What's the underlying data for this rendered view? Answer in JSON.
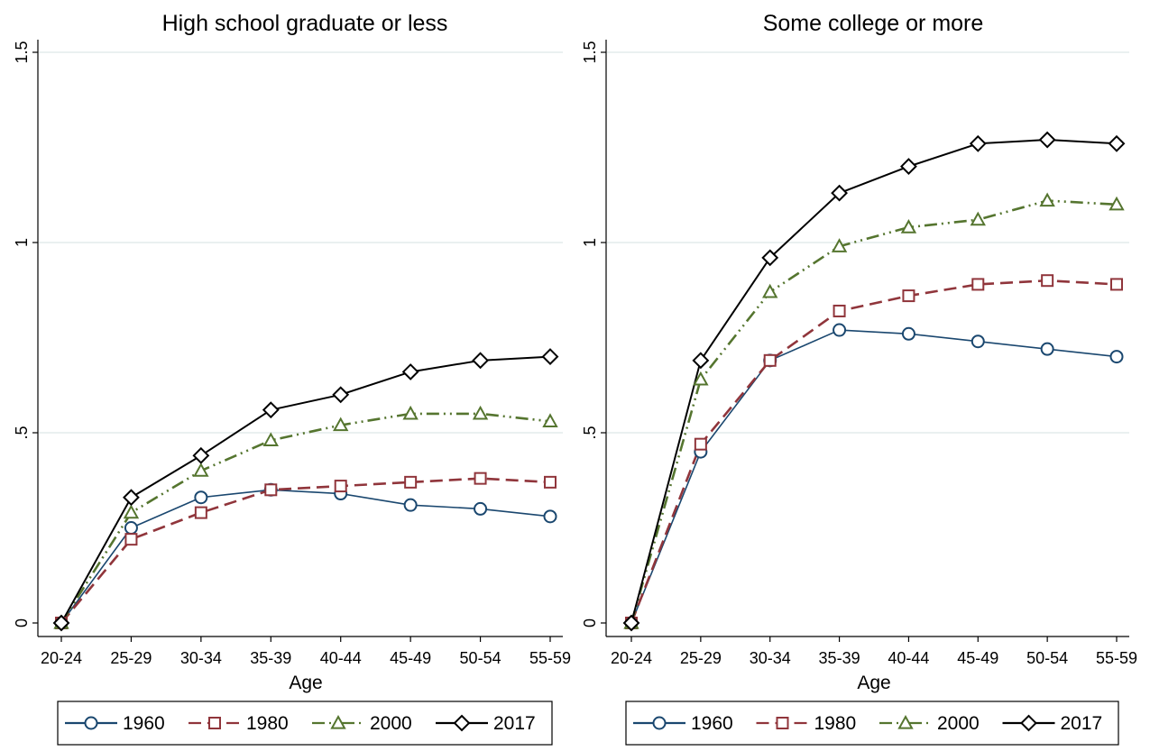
{
  "chart_data": [
    {
      "type": "line",
      "title": "High school graduate or less",
      "xlabel": "Age",
      "ylabel": "",
      "ylim": [
        0,
        1.5
      ],
      "yticks": [
        0,
        0.5,
        1,
        1.5
      ],
      "ytick_labels": [
        "0",
        ".5",
        "1",
        "1.5"
      ],
      "grid": true,
      "legend_position": "bottom",
      "categories": [
        "20-24",
        "25-29",
        "30-34",
        "35-39",
        "40-44",
        "45-49",
        "50-54",
        "55-59"
      ],
      "series": [
        {
          "name": "1960",
          "color": "#1a476f",
          "marker": "circle",
          "dash": "solid",
          "values": [
            0,
            0.25,
            0.33,
            0.35,
            0.34,
            0.31,
            0.3,
            0.28
          ]
        },
        {
          "name": "1980",
          "color": "#90353b",
          "marker": "square",
          "dash": "dash",
          "values": [
            0,
            0.22,
            0.29,
            0.35,
            0.36,
            0.37,
            0.38,
            0.37
          ]
        },
        {
          "name": "2000",
          "color": "#55752f",
          "marker": "triangle",
          "dash": "dashdot",
          "values": [
            0,
            0.29,
            0.4,
            0.48,
            0.52,
            0.55,
            0.55,
            0.53
          ]
        },
        {
          "name": "2017",
          "color": "#000000",
          "marker": "diamond",
          "dash": "solid",
          "values": [
            0,
            0.33,
            0.44,
            0.56,
            0.6,
            0.66,
            0.69,
            0.7
          ]
        }
      ]
    },
    {
      "type": "line",
      "title": "Some college or more",
      "xlabel": "Age",
      "ylabel": "",
      "ylim": [
        0,
        1.5
      ],
      "yticks": [
        0,
        0.5,
        1,
        1.5
      ],
      "ytick_labels": [
        "0",
        ".5",
        "1",
        "1.5"
      ],
      "grid": true,
      "legend_position": "bottom",
      "categories": [
        "20-24",
        "25-29",
        "30-34",
        "35-39",
        "40-44",
        "45-49",
        "50-54",
        "55-59"
      ],
      "series": [
        {
          "name": "1960",
          "color": "#1a476f",
          "marker": "circle",
          "dash": "solid",
          "values": [
            0,
            0.45,
            0.69,
            0.77,
            0.76,
            0.74,
            0.72,
            0.7
          ]
        },
        {
          "name": "1980",
          "color": "#90353b",
          "marker": "square",
          "dash": "dash",
          "values": [
            0,
            0.47,
            0.69,
            0.82,
            0.86,
            0.89,
            0.9,
            0.89
          ]
        },
        {
          "name": "2000",
          "color": "#55752f",
          "marker": "triangle",
          "dash": "dashdot",
          "values": [
            0,
            0.64,
            0.87,
            0.99,
            1.04,
            1.06,
            1.11,
            1.1
          ]
        },
        {
          "name": "2017",
          "color": "#000000",
          "marker": "diamond",
          "dash": "solid",
          "values": [
            0,
            0.69,
            0.96,
            1.13,
            1.2,
            1.26,
            1.27,
            1.26
          ]
        }
      ]
    }
  ]
}
